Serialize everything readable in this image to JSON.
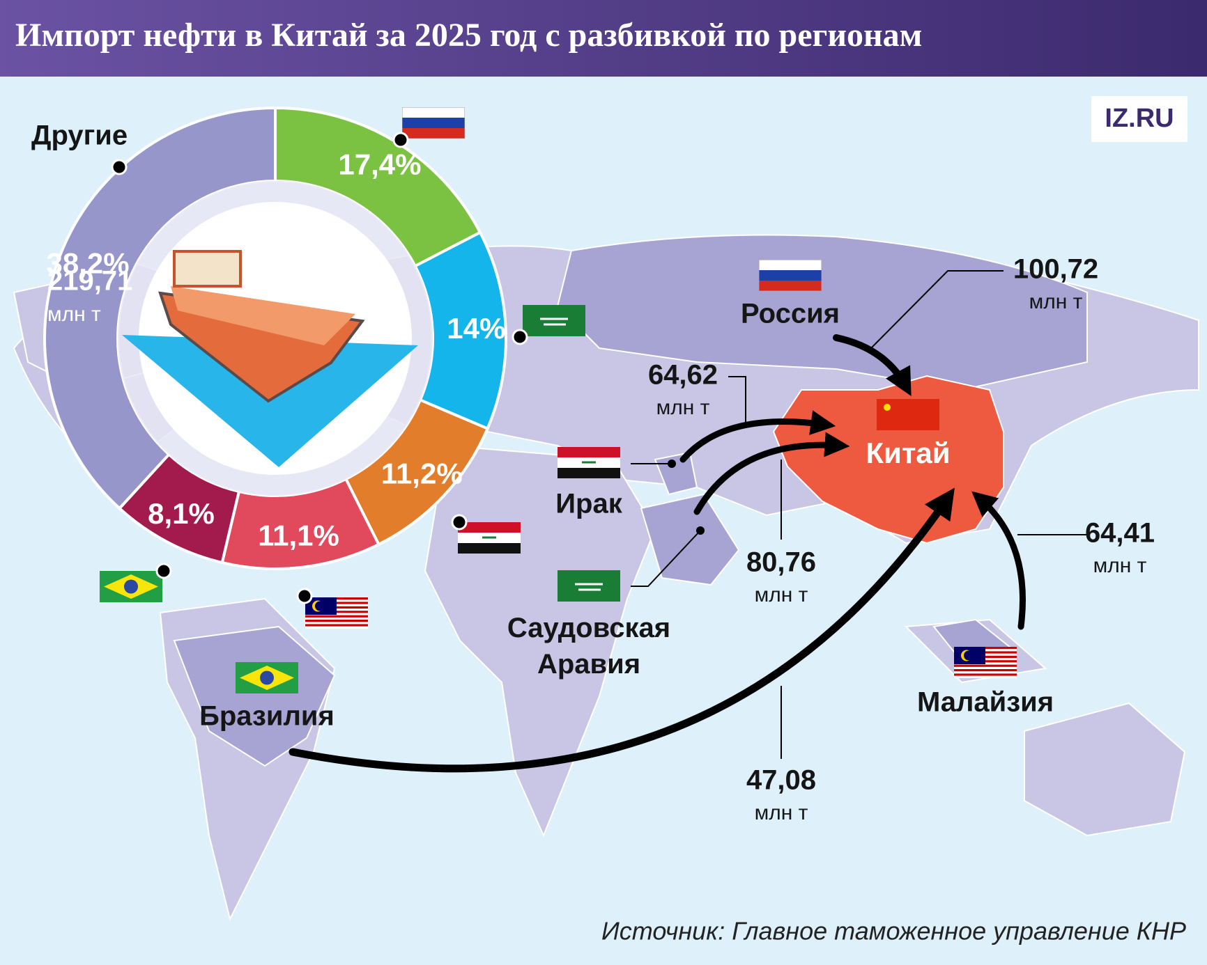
{
  "title": "Импорт нефти в Китай за 2025 год с разбивкой по регионам",
  "logo": "IZ.RU",
  "destination": "Китай",
  "source": "Источник: Главное таможенное управление КНР",
  "chart_data": {
    "type": "donut",
    "categories": [
      "Россия",
      "Саудовская Аравия",
      "Ирак",
      "Малайзия",
      "Бразилия",
      "Другие"
    ],
    "values": [
      17.4,
      14,
      11.2,
      11.1,
      8.1,
      38.2
    ],
    "value_labels": [
      "17,4%",
      "14%",
      "11,2%",
      "11,1%",
      "8,1%",
      "38,2%"
    ],
    "colors": [
      "#7cc242",
      "#13b5ea",
      "#e27d2c",
      "#e04a5c",
      "#a31a4c",
      "#9696cb"
    ],
    "volumes": [
      100.72,
      80.76,
      64.62,
      64.41,
      47.08,
      219.71
    ],
    "volume_labels": [
      "100,72",
      "80,76",
      "64,62",
      "64,41",
      "47,08",
      "219,71"
    ],
    "volume_unit": "млн т"
  }
}
